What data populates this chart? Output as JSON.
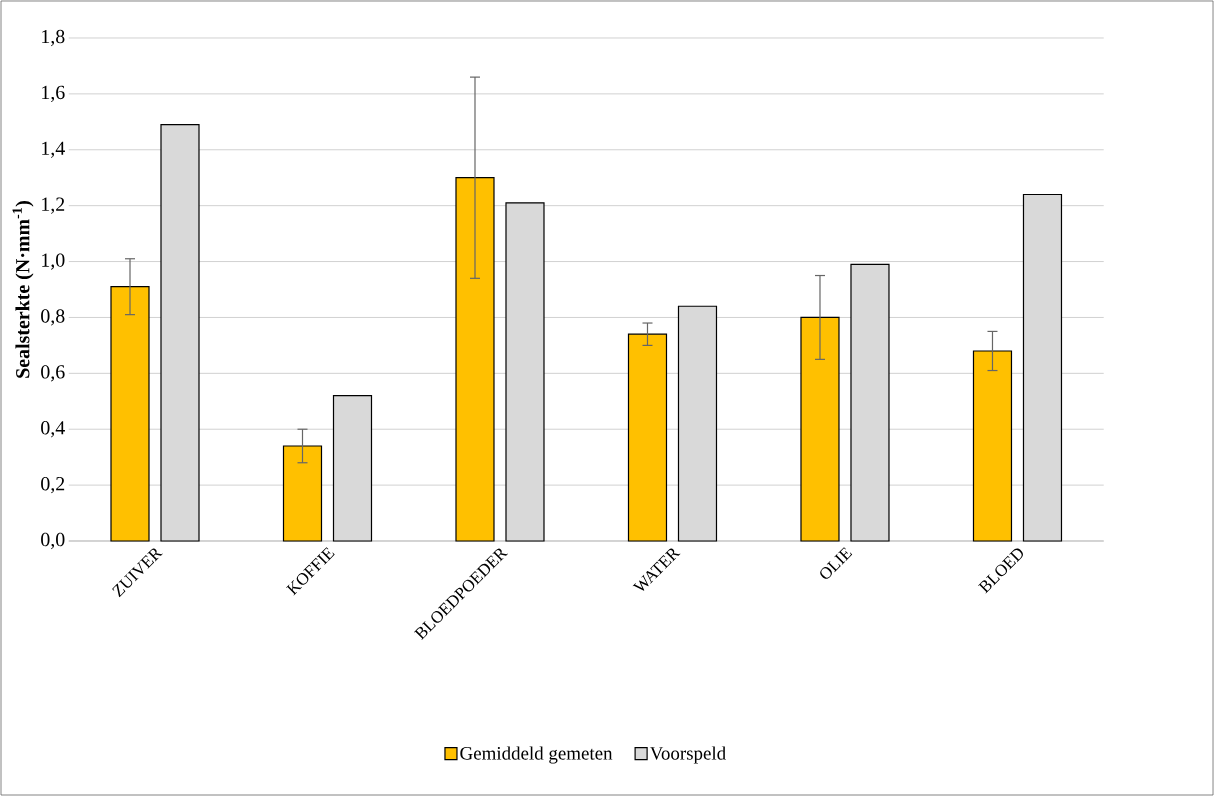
{
  "chart_data": {
    "type": "bar",
    "ylabel": "Sealsterkte (N·mm$^{-1}$)",
    "categories": [
      "ZUIVER",
      "KOFFIE",
      "BLOEDPOEDER",
      "WATER",
      "OLIE",
      "BLOED"
    ],
    "series": [
      {
        "name": "Gemiddeld gemeten",
        "color": "#ffc000",
        "values": [
          0.91,
          0.34,
          1.3,
          0.74,
          0.8,
          0.68
        ],
        "errors": [
          0.1,
          0.06,
          0.36,
          0.04,
          0.15,
          0.07
        ]
      },
      {
        "name": "Voorspeld",
        "color": "#d9d9d9",
        "values": [
          1.49,
          0.52,
          1.21,
          0.84,
          0.99,
          1.24
        ]
      }
    ],
    "ylim": [
      0,
      1.8
    ],
    "yticks": [
      {
        "value": 0,
        "label": "0,0"
      },
      {
        "value": 0.2,
        "label": "0,2"
      },
      {
        "value": 0.4,
        "label": "0,4"
      },
      {
        "value": 0.6,
        "label": "0,6"
      },
      {
        "value": 0.8,
        "label": "0,8"
      },
      {
        "value": 1.0,
        "label": "1,0"
      },
      {
        "value": 1.2,
        "label": "1,2"
      },
      {
        "value": 1.4,
        "label": "1,4"
      },
      {
        "value": 1.6,
        "label": "1,6"
      },
      {
        "value": 1.8,
        "label": "1,8"
      }
    ],
    "grid": "y",
    "legend": "bottom"
  }
}
